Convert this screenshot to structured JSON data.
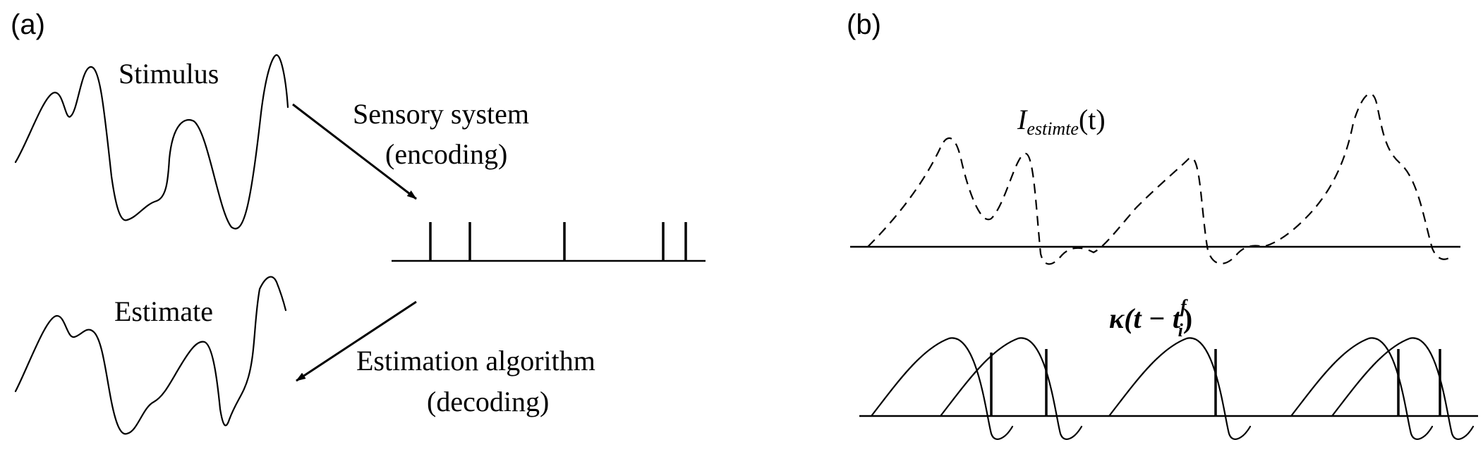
{
  "panel_a": {
    "label": "(a)",
    "stimulus_label": "Stimulus",
    "estimate_label": "Estimate",
    "encoding_line1": "Sensory system",
    "encoding_line2": "(encoding)",
    "decoding_line1": "Estimation algorithm",
    "decoding_line2": "(decoding)"
  },
  "panel_b": {
    "label": "(b)",
    "estimate_curve": {
      "symbol": "I",
      "subscript": "estimte",
      "argument": "(t)"
    },
    "kernel": {
      "symbol": "κ",
      "expr_open": "(t − t",
      "superscript": "f",
      "subscript": "i",
      "expr_close": ")"
    }
  },
  "colors": {
    "ink": "#000000",
    "background": "#ffffff"
  }
}
